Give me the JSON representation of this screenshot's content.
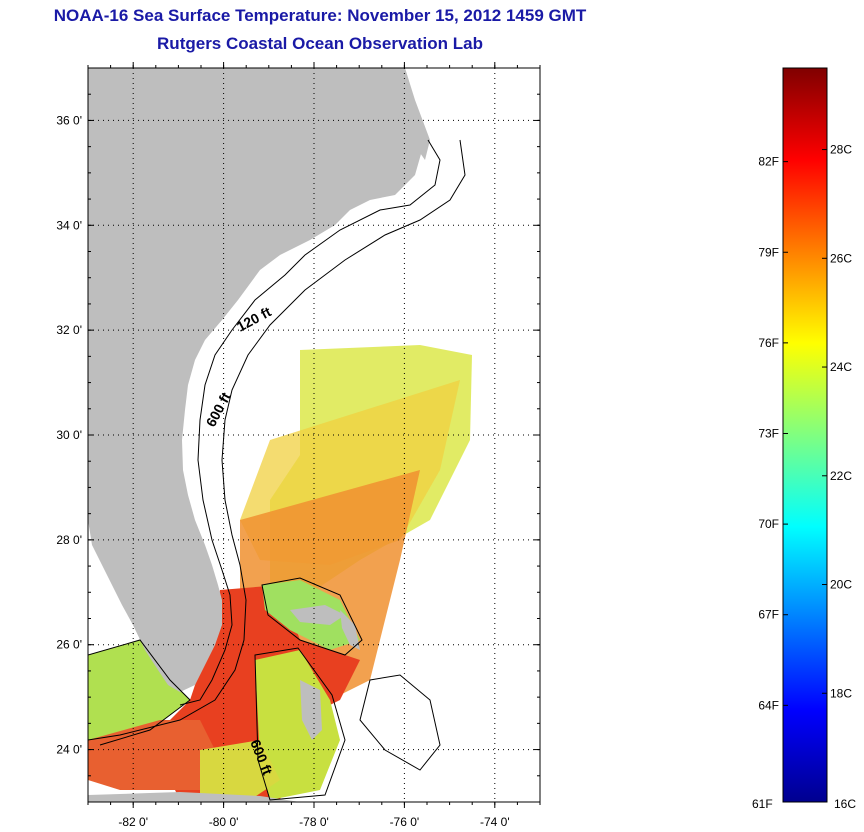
{
  "title": {
    "line1": "NOAA-16 Sea Surface Temperature:  November 15, 2012 1459 GMT",
    "line2": "Rutgers Coastal Ocean Observation Lab"
  },
  "map": {
    "lat_range": [
      23,
      37
    ],
    "lon_range": [
      -83,
      -73
    ],
    "lat_ticks": [
      {
        "value": 24,
        "label": "24 0'"
      },
      {
        "value": 26,
        "label": "26 0'"
      },
      {
        "value": 28,
        "label": "28 0'"
      },
      {
        "value": 30,
        "label": "30 0'"
      },
      {
        "value": 32,
        "label": "32 0'"
      },
      {
        "value": 34,
        "label": "34 0'"
      },
      {
        "value": 36,
        "label": "36 0'"
      }
    ],
    "lon_ticks": [
      {
        "value": -82,
        "label": "-82 0'"
      },
      {
        "value": -80,
        "label": "-80 0'"
      },
      {
        "value": -78,
        "label": "-78 0'"
      },
      {
        "value": -76,
        "label": "-76 0'"
      },
      {
        "value": -74,
        "label": "-74 0'"
      }
    ],
    "grid": "dotted",
    "land_color": "#bebebe",
    "contour_labels": [
      {
        "text": "120 ft"
      },
      {
        "text": "600 ft"
      },
      {
        "text": "600 ft"
      }
    ]
  },
  "colorbar": {
    "range_c": [
      16,
      29.5
    ],
    "bottom_left_label": "61F",
    "bottom_right_label": "16C",
    "f_labels": [
      "64F",
      "67F",
      "70F",
      "73F",
      "76F",
      "79F",
      "82F"
    ],
    "c_labels": [
      "18C",
      "20C",
      "22C",
      "24C",
      "26C",
      "28C"
    ],
    "colors": [
      "#00008f",
      "#0000ff",
      "#0080ff",
      "#00ffff",
      "#80ff80",
      "#ffff00",
      "#ff8000",
      "#ff0000",
      "#800000"
    ]
  }
}
